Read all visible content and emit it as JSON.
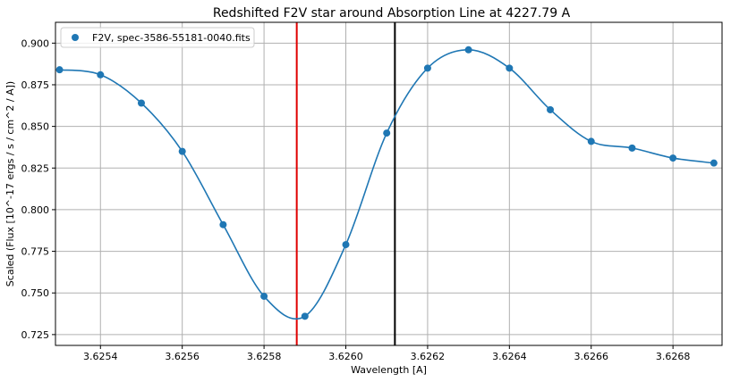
{
  "chart_data": {
    "type": "line",
    "title": "Redshifted F2V star around Absorption Line at 4227.79 A",
    "xlabel": "Wavelength [A]",
    "ylabel": "Scaled (Flux [10^-17 ergs / s / cm^2 / A])",
    "xlim": [
      3.62529,
      3.62692
    ],
    "ylim": [
      0.7185,
      0.9125
    ],
    "grid": true,
    "legend_position": "top-left",
    "x_ticks": [
      3.6254,
      3.6256,
      3.6258,
      3.626,
      3.6262,
      3.6264,
      3.6266,
      3.6268
    ],
    "x_tick_labels": [
      "3.6254",
      "3.6256",
      "3.6258",
      "3.6260",
      "3.6262",
      "3.6264",
      "3.6266",
      "3.6268"
    ],
    "y_ticks": [
      0.725,
      0.75,
      0.775,
      0.8,
      0.825,
      0.85,
      0.875,
      0.9
    ],
    "y_tick_labels": [
      "0.725",
      "0.750",
      "0.775",
      "0.800",
      "0.825",
      "0.850",
      "0.875",
      "0.900"
    ],
    "series": [
      {
        "name": "F2V, spec-3586-55181-0040.fits",
        "color": "#1f77b4",
        "marker": "circle",
        "x": [
          3.6253,
          3.6254,
          3.6255,
          3.6256,
          3.6257,
          3.6258,
          3.6259,
          3.626,
          3.6261,
          3.6262,
          3.6263,
          3.6264,
          3.6265,
          3.6266,
          3.6267,
          3.6268,
          3.6269
        ],
        "y": [
          0.884,
          0.881,
          0.864,
          0.835,
          0.791,
          0.748,
          0.736,
          0.779,
          0.846,
          0.885,
          0.896,
          0.885,
          0.86,
          0.841,
          0.837,
          0.831,
          0.828
        ]
      }
    ],
    "vertical_lines": [
      {
        "x": 3.62588,
        "color": "#e00000"
      },
      {
        "x": 3.62612,
        "color": "#000000"
      }
    ]
  }
}
